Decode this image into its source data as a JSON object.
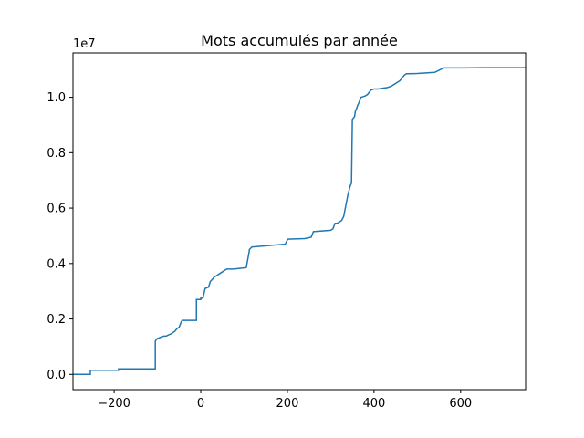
{
  "chart_data": {
    "type": "line",
    "title": "Mots accumulés par année",
    "xlabel": "",
    "ylabel": "",
    "y_offset_label": "1e7",
    "xlim": [
      -295,
      750
    ],
    "ylim": [
      -550000,
      11600000
    ],
    "x_ticks": [
      -200,
      0,
      200,
      400,
      600
    ],
    "x_tick_labels": [
      "−200",
      "0",
      "200",
      "400",
      "600"
    ],
    "y_ticks": [
      0,
      2000000,
      4000000,
      6000000,
      8000000,
      10000000
    ],
    "y_tick_labels": [
      "0.0",
      "0.2",
      "0.4",
      "0.6",
      "0.8",
      "1.0"
    ],
    "grid": false,
    "line_color": "#1f77b4",
    "drawstyle": "steps",
    "series": [
      {
        "x": [
          -295,
          -255,
          -255,
          -190,
          -190,
          -105,
          -105,
          -100,
          -95,
          -90,
          -85,
          -80,
          -75,
          -70,
          -65,
          -60,
          -55,
          -50,
          -45,
          -42,
          -10,
          -10,
          0,
          0,
          5,
          10,
          18,
          20,
          22,
          25,
          28,
          30,
          35,
          40,
          45,
          50,
          55,
          60,
          65,
          70,
          75,
          105,
          112,
          112,
          118,
          120,
          195,
          200,
          200,
          240,
          255,
          260,
          300,
          305,
          310,
          315,
          320,
          325,
          330,
          335,
          340,
          345,
          348,
          350,
          350,
          355,
          357,
          360,
          362,
          365,
          370,
          380,
          385,
          392,
          395,
          400,
          410,
          420,
          430,
          440,
          450,
          460,
          465,
          470,
          475,
          480,
          500,
          520,
          540,
          560,
          560,
          600,
          650,
          700,
          750
        ],
        "y": [
          0,
          0,
          150000,
          150000,
          200000,
          200000,
          1200000,
          1300000,
          1320000,
          1360000,
          1380000,
          1380000,
          1420000,
          1450000,
          1500000,
          1550000,
          1650000,
          1700000,
          1900000,
          1950000,
          1950000,
          2700000,
          2700000,
          2750000,
          2750000,
          3100000,
          3150000,
          3250000,
          3350000,
          3400000,
          3450000,
          3500000,
          3550000,
          3600000,
          3650000,
          3700000,
          3750000,
          3800000,
          3800000,
          3800000,
          3800000,
          3850000,
          4450000,
          4500000,
          4600000,
          4600000,
          4700000,
          4850000,
          4880000,
          4900000,
          4950000,
          5150000,
          5200000,
          5250000,
          5450000,
          5450000,
          5500000,
          5550000,
          5700000,
          6100000,
          6500000,
          6800000,
          6900000,
          9200000,
          9200000,
          9300000,
          9500000,
          9600000,
          9700000,
          9800000,
          10000000,
          10050000,
          10100000,
          10250000,
          10270000,
          10300000,
          10300000,
          10330000,
          10350000,
          10400000,
          10500000,
          10600000,
          10700000,
          10800000,
          10850000,
          10850000,
          10860000,
          10880000,
          10900000,
          11050000,
          11060000,
          11060000,
          11070000,
          11070000,
          11070000
        ]
      }
    ]
  }
}
